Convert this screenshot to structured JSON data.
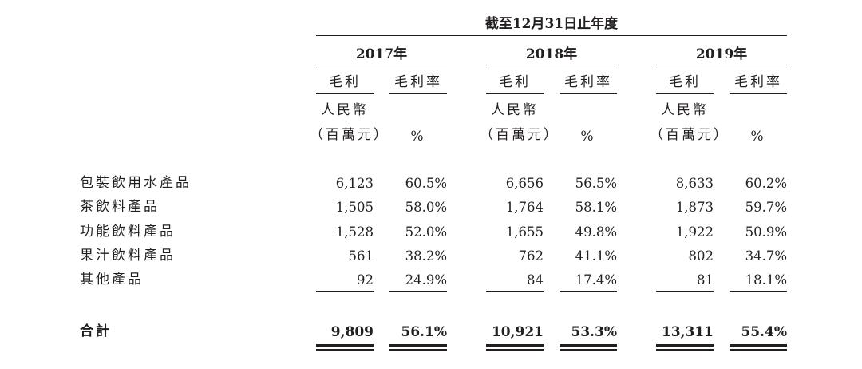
{
  "header": {
    "period": "截至12月31日止年度"
  },
  "years": [
    {
      "year": "2017年",
      "col1": "毛利",
      "col2": "毛利率",
      "unit_line1": "人民幣",
      "unit_line2": "（百萬元）",
      "pct": "%"
    },
    {
      "year": "2018年",
      "col1": "毛利",
      "col2": "毛利率",
      "unit_line1": "人民幣",
      "unit_line2": "（百萬元）",
      "pct": "%"
    },
    {
      "year": "2019年",
      "col1": "毛利",
      "col2": "毛利率",
      "unit_line1": "人民幣",
      "unit_line2": "（百萬元）",
      "pct": "%"
    }
  ],
  "rows": [
    {
      "label": "包裝飲用水產品",
      "values": [
        "6,123",
        "60.5%",
        "6,656",
        "56.5%",
        "8,633",
        "60.2%"
      ]
    },
    {
      "label": "茶飲料產品",
      "values": [
        "1,505",
        "58.0%",
        "1,764",
        "58.1%",
        "1,873",
        "59.7%"
      ]
    },
    {
      "label": "功能飲料產品",
      "values": [
        "1,528",
        "52.0%",
        "1,655",
        "49.8%",
        "1,922",
        "50.9%"
      ]
    },
    {
      "label": "果汁飲料產品",
      "values": [
        "561",
        "38.2%",
        "762",
        "41.1%",
        "802",
        "34.7%"
      ]
    },
    {
      "label": "其他產品",
      "values": [
        "92",
        "24.9%",
        "84",
        "17.4%",
        "81",
        "18.1%"
      ]
    }
  ],
  "total": {
    "label": "合計",
    "values": [
      "9,809",
      "56.1%",
      "10,921",
      "53.3%",
      "13,311",
      "55.4%"
    ]
  }
}
